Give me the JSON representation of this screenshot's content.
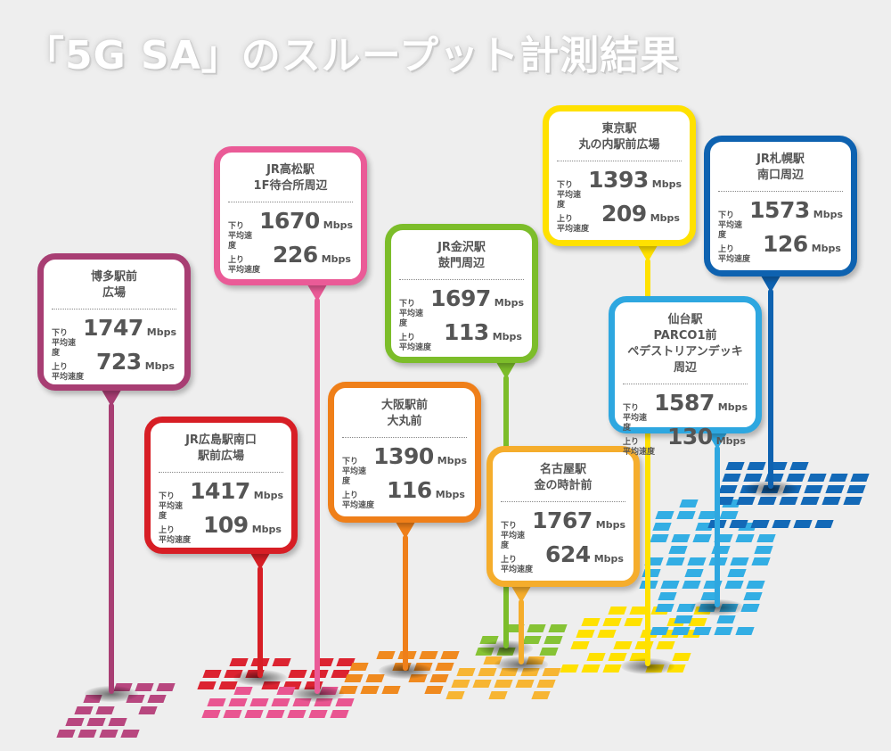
{
  "title": "「5G SA」のスループット計測結果",
  "labels": {
    "down": "下り\n平均速度",
    "up": "上り\n平均速度",
    "unit": "Mbps"
  },
  "stations": [
    {
      "id": "hakata",
      "name": "博多駅前\n広場",
      "down": "1747",
      "up": "723",
      "color": "#a83e73"
    },
    {
      "id": "hiroshima",
      "name": "JR広島駅南口\n駅前広場",
      "down": "1417",
      "up": "109",
      "color": "#d71e25"
    },
    {
      "id": "takamatsu",
      "name": "JR高松駅\n1F待合所周辺",
      "down": "1670",
      "up": "226",
      "color": "#ea5b97"
    },
    {
      "id": "osaka",
      "name": "大阪駅前\n大丸前",
      "down": "1390",
      "up": "116",
      "color": "#ef7f19"
    },
    {
      "id": "kanazawa",
      "name": "JR金沢駅\n鼓門周辺",
      "down": "1697",
      "up": "113",
      "color": "#7cbd2a"
    },
    {
      "id": "nagoya",
      "name": "名古屋駅\n金の時計前",
      "down": "1767",
      "up": "624",
      "color": "#f5ad2c"
    },
    {
      "id": "tokyo",
      "name": "東京駅\n丸の内駅前広場",
      "down": "1393",
      "up": "209",
      "color": "#ffe100"
    },
    {
      "id": "sendai",
      "name": "仙台駅\nPARCO1前\nペデストリアンデッキ周辺",
      "down": "1587",
      "up": "130",
      "color": "#2ea7e0"
    },
    {
      "id": "sapporo",
      "name": "JR札幌駅\n南口周辺",
      "down": "1573",
      "up": "126",
      "color": "#0e62b0"
    }
  ]
}
